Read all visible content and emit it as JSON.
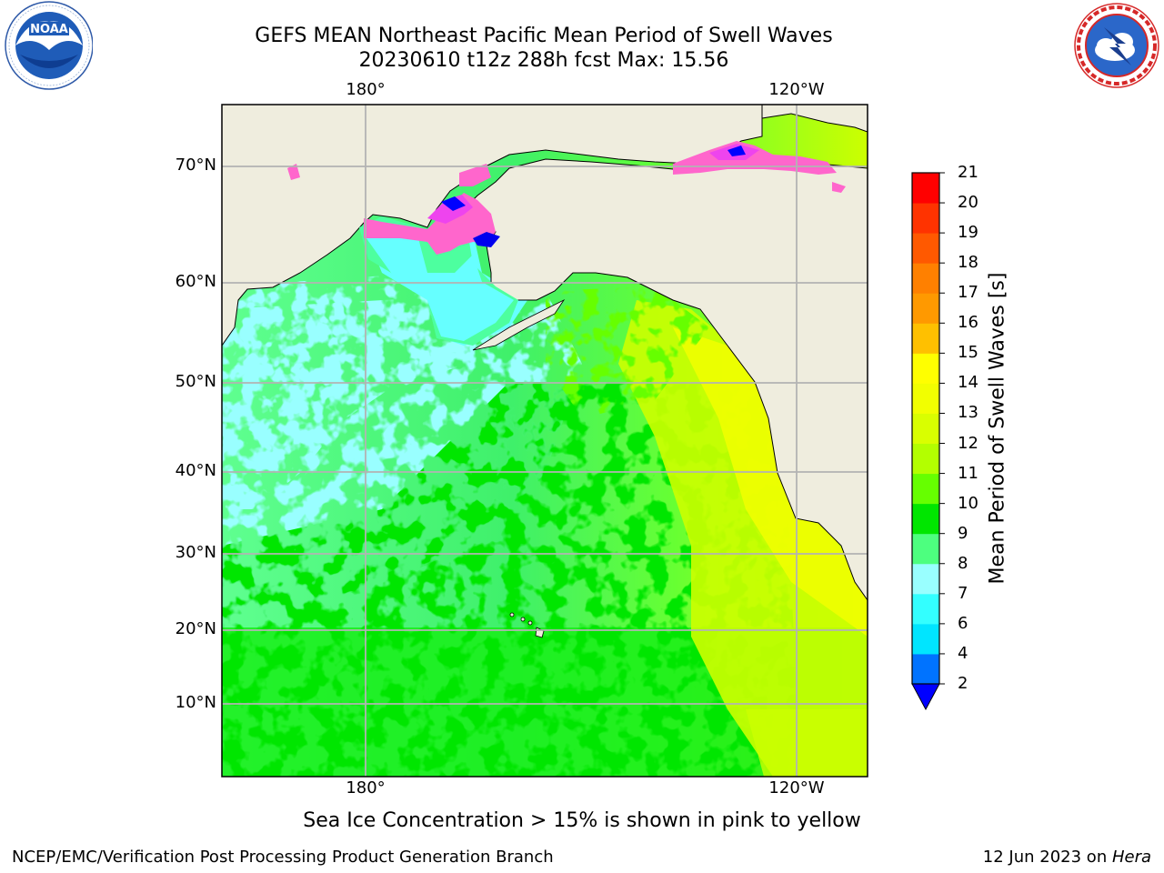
{
  "title": {
    "line1": "GEFS MEAN Northeast Pacific Mean Period of Swell Waves",
    "line2": "20230610 t12z 288h fcst   Max: 15.56"
  },
  "axes": {
    "lon_labels_top": [
      "180°",
      "120°W"
    ],
    "lon_labels_bottom": [
      "180°",
      "120°W"
    ],
    "lat_labels": [
      "70°N",
      "60°N",
      "50°N",
      "40°N",
      "30°N",
      "20°N",
      "10°N"
    ]
  },
  "colorbar": {
    "label": "Mean Period of Swell Waves [s]",
    "ticks": [
      "2",
      "4",
      "6",
      "7",
      "8",
      "9",
      "10",
      "11",
      "12",
      "13",
      "14",
      "15",
      "16",
      "17",
      "18",
      "19",
      "20",
      "21"
    ],
    "colors": [
      "#0000ff",
      "#0073ff",
      "#00e5ff",
      "#33ffff",
      "#99ffff",
      "#4dff7f",
      "#00e600",
      "#66ff00",
      "#b3ff00",
      "#d9ff00",
      "#f2ff00",
      "#ffff00",
      "#ffc000",
      "#ff9900",
      "#ff8000",
      "#ff5900",
      "#ff3300",
      "#ff0000"
    ]
  },
  "map_colors": {
    "land": "#efedde",
    "grid": "#b3b3b3",
    "ice_pink": "#ff66cc",
    "ice_magenta": "#ee44ee"
  },
  "note": "Sea Ice Concentration > 15% is shown in pink to yellow",
  "footer": {
    "left": "NCEP/EMC/Verification Post Processing Product Generation Branch",
    "right_prefix": "12 Jun 2023 on ",
    "right_host": "Hera"
  },
  "logos": {
    "left": "noaa-logo",
    "right": "nws-logo"
  }
}
